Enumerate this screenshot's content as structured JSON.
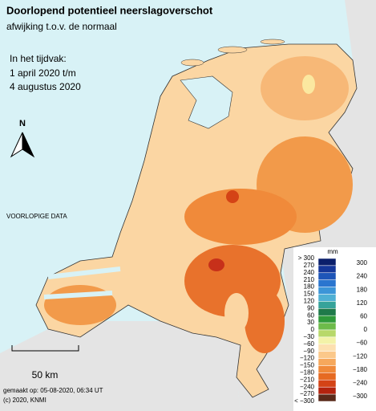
{
  "header": {
    "title": "Doorlopend potentieel neerslagoverschot",
    "subtitle": "afwijking t.o.v. de normaal"
  },
  "period": {
    "label": "In het tijdvak:",
    "start": "1 april 2020 t/m",
    "end": "4 augustus 2020"
  },
  "north": "N",
  "notice": "VOORLOPIGE DATA",
  "scale_bar": "50 km",
  "footer": {
    "made": "gemaakt op: 05-08-2020, 06:34 UT",
    "copyright": "(c) 2020, KNMI"
  },
  "legend": {
    "unit": "mm",
    "left_labels": [
      "> 300",
      "270",
      "240",
      "210",
      "180",
      "150",
      "120",
      "90",
      "60",
      "30",
      "0",
      "−30",
      "−60",
      "−90",
      "−120",
      "−150",
      "−180",
      "−210",
      "−240",
      "−270",
      "< −300"
    ],
    "right_labels": [
      "300",
      "240",
      "180",
      "120",
      "60",
      "0",
      "−60",
      "−120",
      "−180",
      "−240",
      "−300"
    ],
    "colors": [
      "#0b1f6b",
      "#15379a",
      "#1e55b8",
      "#2a75cf",
      "#3c95d8",
      "#4fb0d4",
      "#36a39a",
      "#1f7a4a",
      "#2f9a3a",
      "#6dbb4a",
      "#b8d86a",
      "#f3f2a8",
      "#fde0b0",
      "#fbc88a",
      "#f6a85c",
      "#f08a3a",
      "#e66a22",
      "#d44316",
      "#b3230e",
      "#5a2a1a"
    ]
  }
}
